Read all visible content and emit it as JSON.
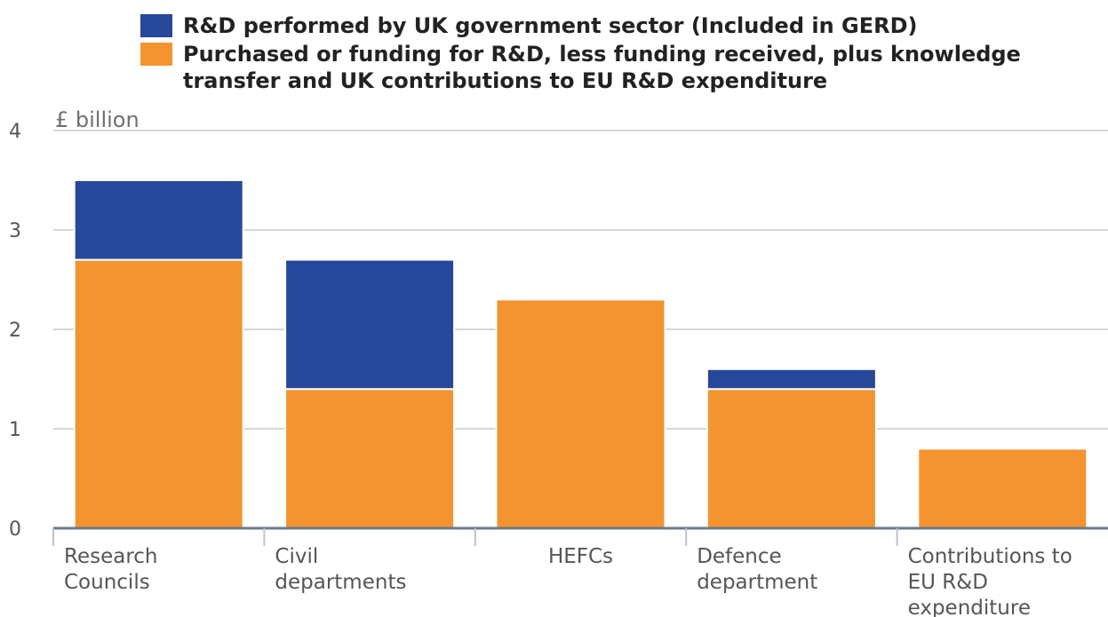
{
  "chart_data": {
    "type": "bar",
    "stacked": true,
    "unit_label": "£ billion",
    "categories": [
      [
        "Research",
        "Councils"
      ],
      [
        "Civil",
        "departments"
      ],
      [
        "HEFCs"
      ],
      [
        "Defence",
        "department"
      ],
      [
        "Contributions to",
        "EU R&D",
        "expenditure"
      ]
    ],
    "series": [
      {
        "name": "Purchased or funding for R&D, less funding received, plus knowledge transfer and UK contributions to EU R&D expenditure",
        "color": "#f39431",
        "values": [
          2.7,
          1.4,
          2.3,
          1.4,
          0.8
        ]
      },
      {
        "name": "R&D performed by UK government sector (Included in GERD)",
        "color": "#27479a",
        "values": [
          0.8,
          1.3,
          0.0,
          0.2,
          0.0
        ]
      }
    ],
    "ylim": [
      0,
      4
    ],
    "yticks": [
      0,
      1,
      2,
      3,
      4
    ],
    "grid": true,
    "legend_position": "top"
  },
  "legend": [
    {
      "label": "R&D performed by UK government sector (Included in GERD)",
      "color": "#27479a"
    },
    {
      "label": "Purchased or funding for R&D, less funding received, plus knowledge transfer and UK contributions to EU R&D expenditure",
      "color": "#f39431"
    }
  ]
}
